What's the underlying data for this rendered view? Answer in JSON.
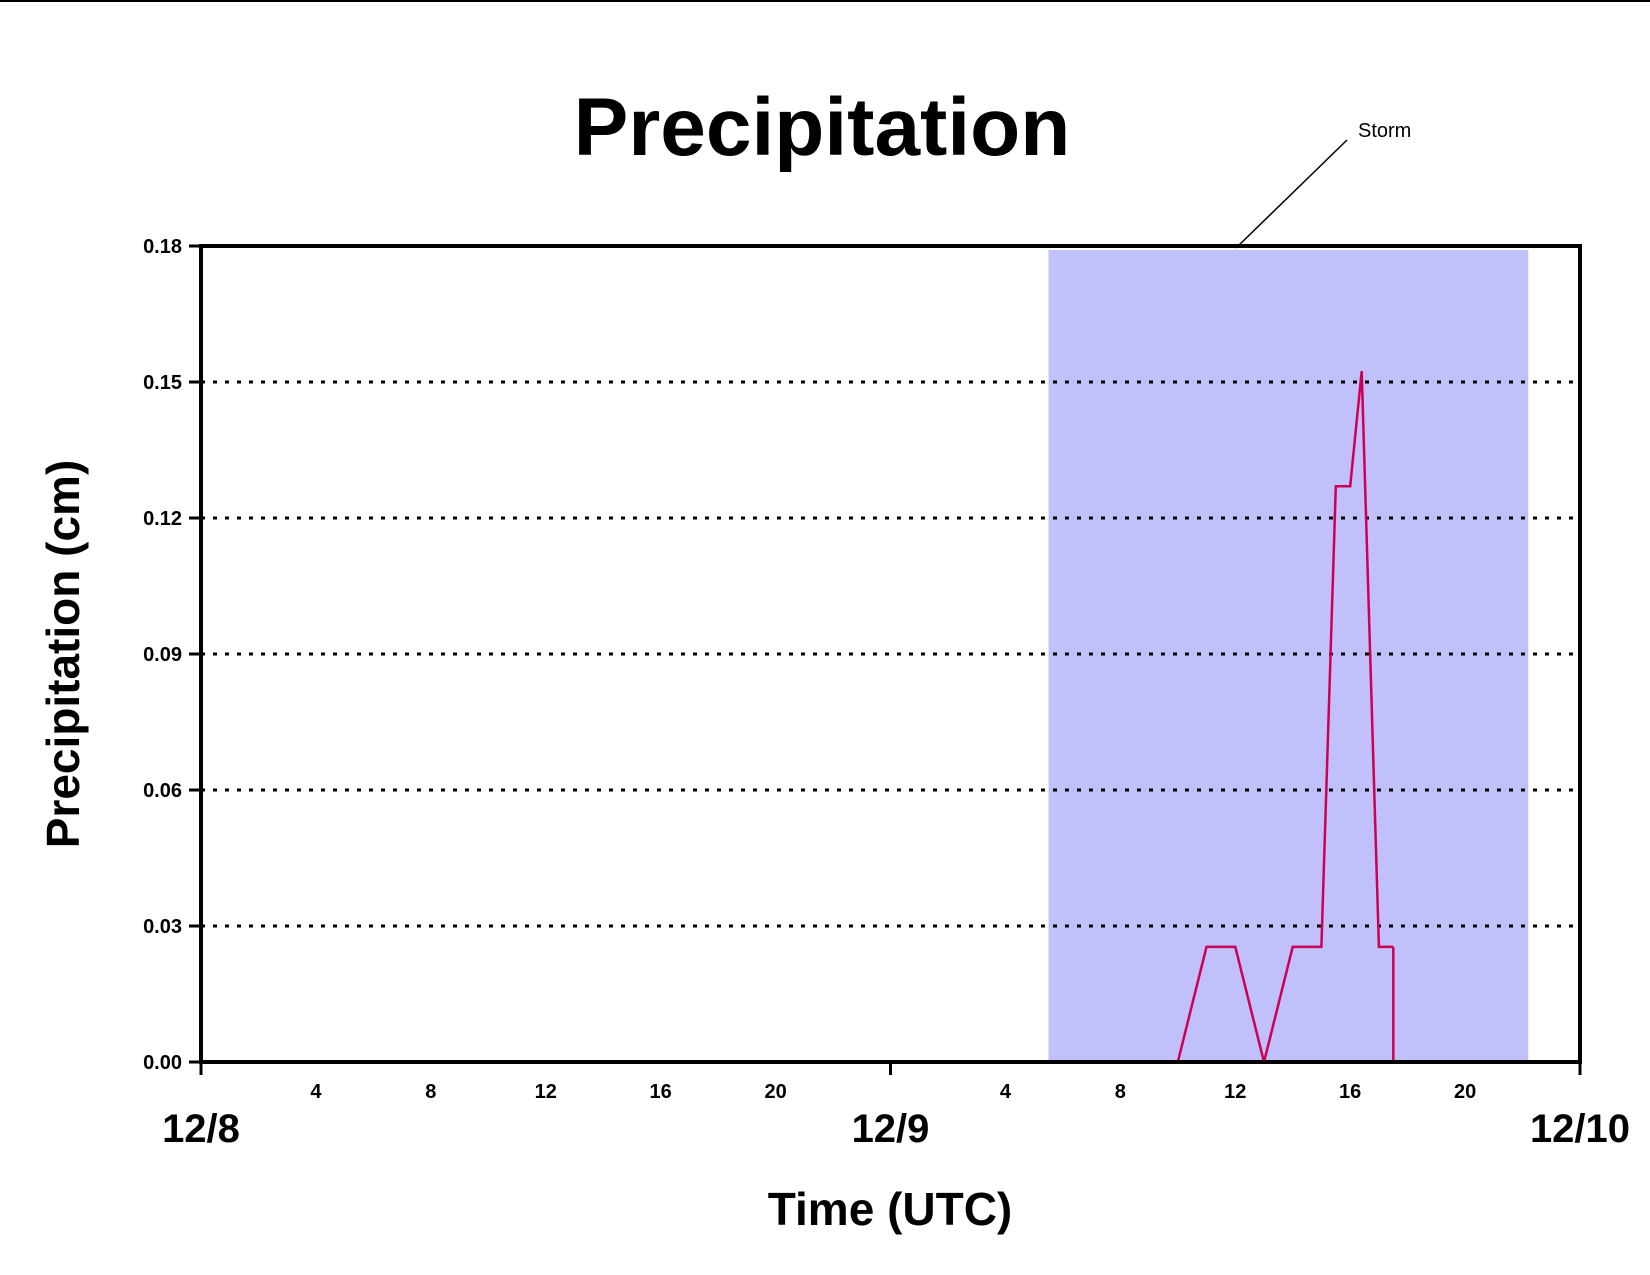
{
  "chart_data": {
    "type": "line",
    "title": "Precipitation",
    "xlabel": "Time (UTC)",
    "ylabel": "Precipitation (cm)",
    "xlim_hours": [
      0,
      48
    ],
    "ylim": [
      0,
      0.18
    ],
    "yticks": [
      "0.00",
      "0.03",
      "0.06",
      "0.09",
      "0.12",
      "0.15",
      "0.18"
    ],
    "grid": "horizontal dotted",
    "x_hour_labels": [
      {
        "hour": 4,
        "label": "4"
      },
      {
        "hour": 8,
        "label": "8"
      },
      {
        "hour": 12,
        "label": "12"
      },
      {
        "hour": 16,
        "label": "16"
      },
      {
        "hour": 20,
        "label": "20"
      },
      {
        "hour": 28,
        "label": "4"
      },
      {
        "hour": 32,
        "label": "8"
      },
      {
        "hour": 36,
        "label": "12"
      },
      {
        "hour": 40,
        "label": "16"
      },
      {
        "hour": 44,
        "label": "20"
      }
    ],
    "x_date_labels": [
      {
        "hour": 0,
        "label": "12/8"
      },
      {
        "hour": 24,
        "label": "12/9"
      },
      {
        "hour": 48,
        "label": "12/10"
      }
    ],
    "shaded_region": {
      "label": "Storm",
      "x_start": 29.5,
      "x_end": 46.2,
      "color": "#c0c0fa"
    },
    "series": [
      {
        "color": "#cc0055",
        "x": [
          0,
          34,
          35,
          36,
          37,
          38,
          39,
          39.5,
          40,
          40.4,
          41,
          41.5
        ],
        "y": [
          0,
          0,
          0.0254,
          0.0254,
          0,
          0.0254,
          0.0254,
          0.127,
          0.127,
          0.1524,
          0.0254,
          0.0254
        ]
      },
      {
        "color": "#cc0055",
        "x": [
          41.5,
          41.5,
          48
        ],
        "y": [
          0.0254,
          0,
          0
        ]
      }
    ]
  }
}
